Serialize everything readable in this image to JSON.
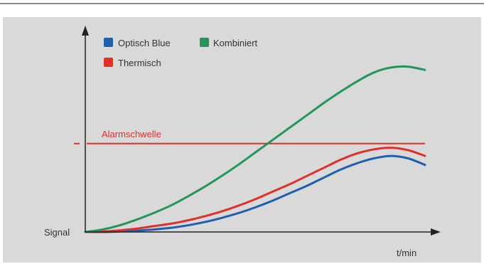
{
  "chart_data": {
    "type": "line",
    "title": "",
    "xlabel": "t/min",
    "ylabel": "Signal",
    "x": [
      0,
      1,
      2,
      3,
      4,
      5,
      6,
      7,
      8,
      9,
      10,
      11,
      12,
      13,
      14,
      15,
      16,
      17,
      18,
      19,
      20
    ],
    "xlim": [
      0,
      20
    ],
    "ylim": [
      0,
      100
    ],
    "grid": false,
    "legend_position": "top-left",
    "series": [
      {
        "name": "Optisch Blue",
        "color": "#1f5fb0",
        "values": [
          0,
          0,
          0.3,
          0.8,
          1.5,
          2.5,
          4,
          6,
          8.5,
          11.5,
          15,
          19,
          23.5,
          28,
          33,
          38,
          42,
          45,
          46.5,
          45,
          41
        ]
      },
      {
        "name": "Thermisch",
        "color": "#e0302a",
        "values": [
          0,
          0.3,
          1,
          2,
          3.5,
          5,
          7,
          9.5,
          12.5,
          16,
          20,
          24.5,
          29,
          34,
          39,
          44,
          48,
          50.5,
          51.5,
          50,
          46.5
        ]
      },
      {
        "name": "Kombiniert",
        "color": "#21975a",
        "values": [
          0,
          1.5,
          4,
          7.5,
          11.5,
          16,
          21.5,
          27.5,
          34,
          41,
          48.5,
          56,
          63.5,
          71,
          78.5,
          85.5,
          92,
          97.5,
          100.5,
          101,
          99
        ]
      }
    ],
    "annotations": [
      {
        "text": "Alarmschwelle",
        "y": 54,
        "color": "#e0302a"
      }
    ]
  }
}
